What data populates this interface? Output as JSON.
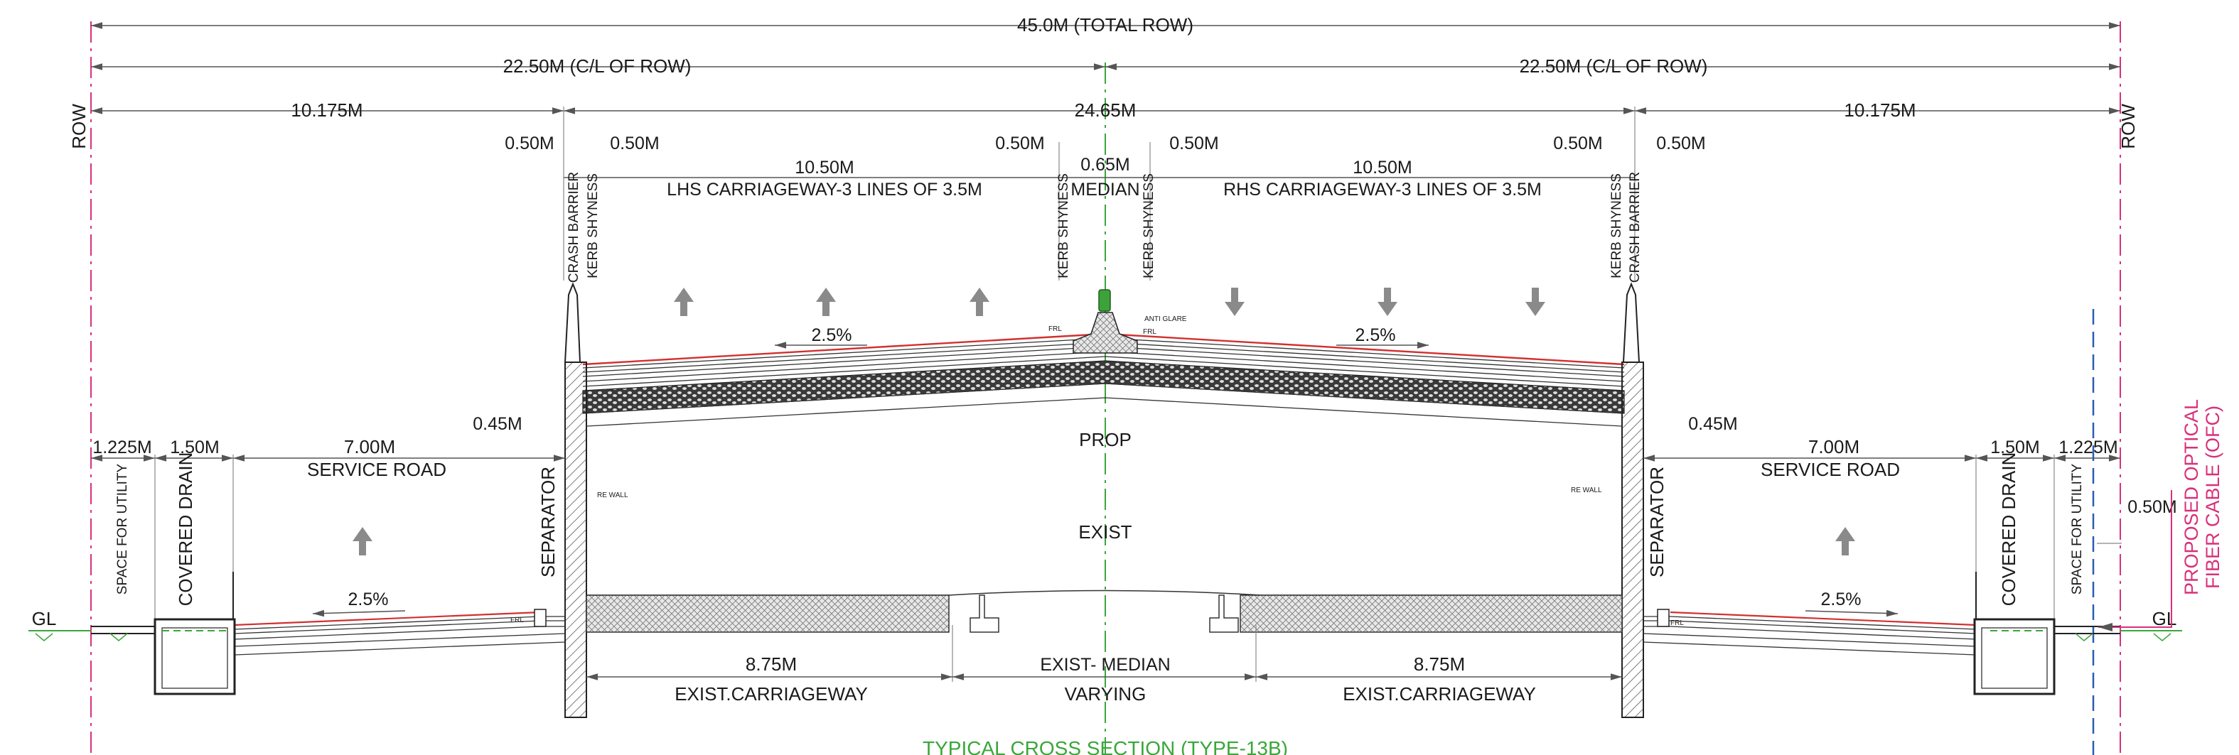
{
  "labels": {
    "total_row": "45.0M (TOTAL ROW)",
    "half_row_left": "22.50M (C/L OF ROW)",
    "half_row_right": "22.50M (C/L OF ROW)",
    "row_left": "ROW",
    "row_right": "ROW",
    "side_left": "10.175M",
    "center_width": "24.65M",
    "side_right": "10.175M",
    "barrier_left_a": "0.50M",
    "barrier_left_b": "0.50M",
    "lhs_width": "10.50M",
    "median_shy_left": "0.50M",
    "median_width": "0.65M",
    "median_label": "MEDIAN",
    "median_shy_right": "0.50M",
    "rhs_width": "10.50M",
    "barrier_right_a": "0.50M",
    "barrier_right_b": "0.50M",
    "lhs_carriageway": "LHS CARRIAGEWAY-3 LINES OF 3.5M",
    "rhs_carriageway": "RHS CARRIAGEWAY-3 LINES OF 3.5M",
    "crash_barrier": "CRASH BARRIER",
    "kerb_shyness": "KERB SHYNESS",
    "anti_glare": "ANTI GLARE",
    "frl": "FRL",
    "slope_lhs": "2.5%",
    "slope_rhs": "2.5%",
    "prop": "PROP",
    "exist": "EXIST",
    "separator": "SEPARATOR",
    "sep_width_left": "0.45M",
    "sep_width_right": "0.45M",
    "re_wall": "RE WALL",
    "utility_left": "1.225M",
    "drain_left": "1.50M",
    "service_left": "7.00M",
    "service_road": "SERVICE ROAD",
    "service_right": "7.00M",
    "drain_right": "1.50M",
    "utility_right": "1.225M",
    "space_for_utility": "SPACE FOR UTILITY",
    "covered_drain": "COVERED DRAIN",
    "slope_service_left": "2.5%",
    "slope_service_right": "2.5%",
    "gl_left": "GL",
    "gl_right": "GL",
    "ofc_offset": "0.50M",
    "ofc_line1": "PROPOSED OPTICAL",
    "ofc_line2": "FIBER CABLE (OFC)",
    "exist_cw_left_width": "8.75M",
    "exist_cw_left": "EXIST.CARRIAGEWAY",
    "exist_median": "EXIST- MEDIAN",
    "varying": "VARYING",
    "exist_cw_right_width": "8.75M",
    "exist_cw_right": "EXIST.CARRIAGEWAY",
    "title": "TYPICAL CROSS SECTION (TYPE-13B)"
  },
  "colors": {
    "row_line": "#d8317a",
    "centerline": "#3aa63a",
    "road_surface": "#d23030",
    "ofc_line": "#2a5fb0",
    "arrow": "#8a8a8a"
  }
}
